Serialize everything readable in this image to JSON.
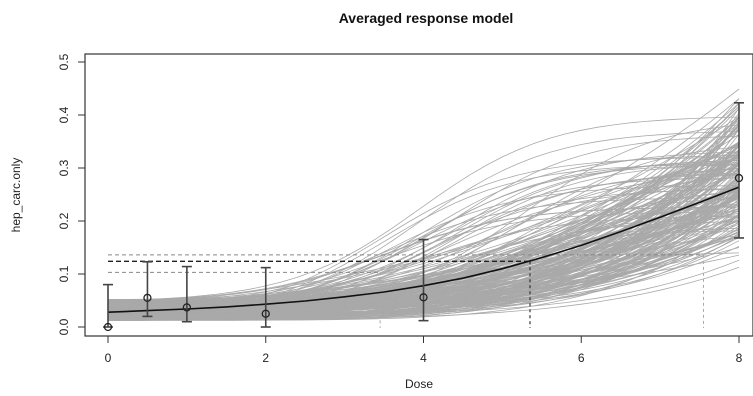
{
  "chart_data": {
    "type": "line",
    "title": "Averaged response model",
    "xlabel": "Dose",
    "ylabel": "hep_carc.only",
    "xlim": [
      -0.2,
      8.2
    ],
    "ylim": [
      -0.02,
      0.52
    ],
    "xticks": [
      "0",
      "2",
      "4",
      "6",
      "8"
    ],
    "yticks": [
      "0.0",
      "0.1",
      "0.2",
      "0.3",
      "0.4",
      "0.5"
    ],
    "grid": false,
    "legend": "none",
    "colors": {
      "model_average": "#111111",
      "bootstrap_curves": "#a9a9a9",
      "error_bars": "#444444",
      "bmd_lines": "#555555"
    },
    "series": [
      {
        "values": [
          {
            "x": 0,
            "y": 0.028
          },
          {
            "x": 0.5,
            "y": 0.031
          },
          {
            "x": 1,
            "y": 0.034
          },
          {
            "x": 1.5,
            "y": 0.038
          },
          {
            "x": 2,
            "y": 0.043
          },
          {
            "x": 2.5,
            "y": 0.049
          },
          {
            "x": 3,
            "y": 0.057
          },
          {
            "x": 3.5,
            "y": 0.066
          },
          {
            "x": 4,
            "y": 0.078
          },
          {
            "x": 4.5,
            "y": 0.092
          },
          {
            "x": 5,
            "y": 0.11
          },
          {
            "x": 5.5,
            "y": 0.131
          },
          {
            "x": 6,
            "y": 0.154
          },
          {
            "x": 6.5,
            "y": 0.18
          },
          {
            "x": 7,
            "y": 0.207
          },
          {
            "x": 7.5,
            "y": 0.235
          },
          {
            "x": 8,
            "y": 0.264
          }
        ]
      }
    ],
    "observed": [
      {
        "x": 0,
        "y": 0.0,
        "lower": 0.0,
        "upper": 0.08
      },
      {
        "x": 0.5,
        "y": 0.055,
        "lower": 0.02,
        "upper": 0.123
      },
      {
        "x": 1,
        "y": 0.037,
        "lower": 0.01,
        "upper": 0.114
      },
      {
        "x": 2,
        "y": 0.025,
        "lower": 0.0,
        "upper": 0.112
      },
      {
        "x": 4,
        "y": 0.056,
        "lower": 0.012,
        "upper": 0.165
      },
      {
        "x": 8,
        "y": 0.281,
        "lower": 0.168,
        "upper": 0.423
      }
    ],
    "bmd_reference": {
      "bmr_level": 0.124,
      "bmd": 5.35,
      "bmd_lower": 3.45,
      "bmd_upper": 7.55,
      "band_upper": 0.136,
      "band_lower": 0.103
    },
    "bootstrap_draws": 220
  }
}
